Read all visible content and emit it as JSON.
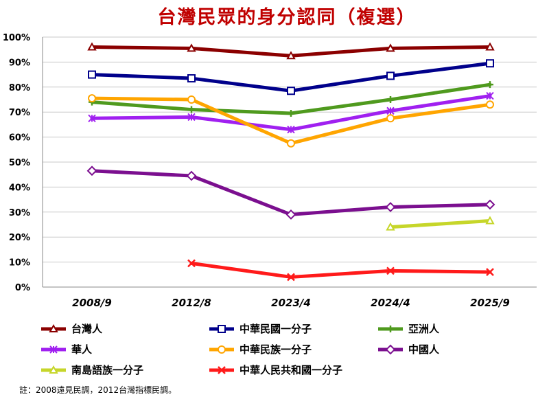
{
  "chart_data": {
    "type": "line",
    "title": "台灣民眾的身分認同（複選）",
    "categories": [
      "2008/9",
      "2012/8",
      "2023/4",
      "2024/4",
      "2025/9"
    ],
    "ylim": [
      0,
      100
    ],
    "yticks": [
      "0%",
      "10%",
      "20%",
      "30%",
      "40%",
      "50%",
      "60%",
      "70%",
      "80%",
      "90%",
      "100%"
    ],
    "grid": true,
    "legend_position": "bottom",
    "series": [
      {
        "name": "台灣人",
        "marker": "triangle",
        "color": "#8b0000",
        "values": [
          96,
          95.5,
          92.5,
          95.5,
          96
        ]
      },
      {
        "name": "中華民國一分子",
        "marker": "square",
        "color": "#00008b",
        "values": [
          85,
          83.5,
          78.5,
          84.5,
          89.5
        ]
      },
      {
        "name": "亞洲人",
        "marker": "plus",
        "color": "#4f9a1e",
        "values": [
          74,
          71,
          69.5,
          75,
          81
        ]
      },
      {
        "name": "華人",
        "marker": "star",
        "color": "#a020f0",
        "values": [
          67.5,
          68,
          63,
          70.5,
          76.5
        ]
      },
      {
        "name": "中華民族一分子",
        "marker": "circle",
        "color": "#ffa500",
        "values": [
          75.5,
          75,
          57.5,
          67.5,
          73
        ]
      },
      {
        "name": "中國人",
        "marker": "diamond",
        "color": "#7b0f8f",
        "values": [
          46.5,
          44.5,
          29,
          32,
          33
        ]
      },
      {
        "name": "南島語族一分子",
        "marker": "triangle",
        "color": "#c6d62a",
        "values": [
          null,
          null,
          null,
          24,
          26.5
        ]
      },
      {
        "name": "中華人民共和國一分子",
        "marker": "x",
        "color": "#ff1a1a",
        "values": [
          null,
          9.5,
          4,
          6.5,
          6
        ]
      }
    ]
  },
  "footnote": "註：2008遠見民調，2012台灣指標民調。"
}
